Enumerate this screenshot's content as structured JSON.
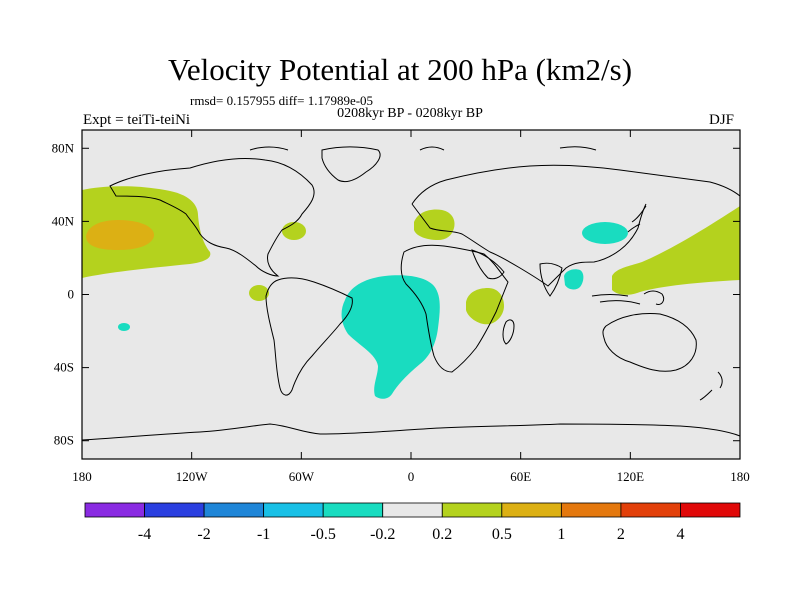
{
  "title": "Velocity Potential at 200 hPa (km2/s)",
  "stats": "rmsd= 0.157955 diff= 1.17989e-05",
  "period": "0208kyr BP - 0208kyr BP",
  "experiment": "Expt = teiTi-teiNi",
  "season": "DJF",
  "map": {
    "background_color": "#e8e8e8",
    "y_axis_labels": [
      {
        "label": "80N",
        "lat": 80
      },
      {
        "label": "40N",
        "lat": 40
      },
      {
        "label": "0",
        "lat": 0
      },
      {
        "label": "40S",
        "lat": -40
      },
      {
        "label": "80S",
        "lat": -80
      }
    ],
    "x_axis_labels": [
      {
        "label": "180",
        "lon": -180
      },
      {
        "label": "120W",
        "lon": -120
      },
      {
        "label": "60W",
        "lon": -60
      },
      {
        "label": "0",
        "lon": 0
      },
      {
        "label": "60E",
        "lon": 60
      },
      {
        "label": "120E",
        "lon": 120
      },
      {
        "label": "180",
        "lon": 180
      }
    ]
  },
  "colorbar": {
    "colors": [
      "#8a2be2",
      "#2a3fe0",
      "#1f86d8",
      "#19c0e6",
      "#19dcc0",
      "#e8e8e8",
      "#b4d21e",
      "#dcb014",
      "#e4780e",
      "#e2400a",
      "#e00808"
    ],
    "labels": [
      "-4",
      "-2",
      "-1",
      "-0.5",
      "-0.2",
      "0.2",
      "0.5",
      "1",
      "2",
      "4"
    ]
  }
}
